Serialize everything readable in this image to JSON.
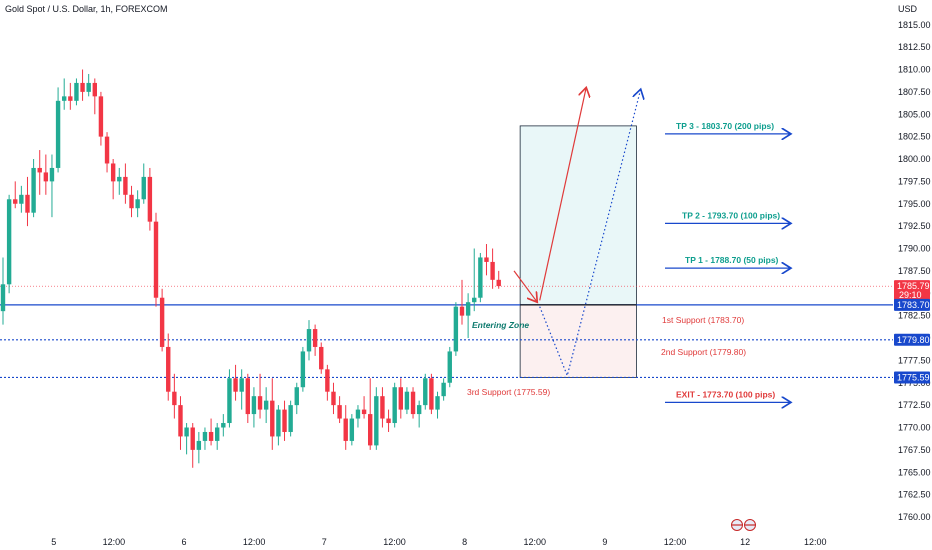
{
  "colors": {
    "bull": "#22ab94",
    "bear": "#f23645",
    "blue": "#1848cc",
    "teal": "#0d9e8e",
    "red_text": "#e03a3a",
    "box_top": "#e9f7f8",
    "box_bottom": "#fcf0f0",
    "axis_bg": "#ffffff"
  },
  "chart_data": {
    "type": "candlestick",
    "title": "Gold Spot / U.S. Dollar, 1h, FOREXCOM",
    "currency": "USD",
    "y_ticks": [
      "1815.00",
      "1812.50",
      "1810.00",
      "1807.50",
      "1805.00",
      "1802.50",
      "1800.00",
      "1797.50",
      "1795.00",
      "1792.50",
      "1790.00",
      "1787.50",
      "1785.00",
      "1782.50",
      "1780.00",
      "1777.50",
      "1775.00",
      "1772.50",
      "1770.00",
      "1767.50",
      "1765.00",
      "1762.50",
      "1760.00"
    ],
    "y_tick_values": [
      1815,
      1812.5,
      1810,
      1807.5,
      1805,
      1802.5,
      1800,
      1797.5,
      1795,
      1792.5,
      1790,
      1787.5,
      1785,
      1782.5,
      1780,
      1777.5,
      1775,
      1772.5,
      1770,
      1767.5,
      1765,
      1762.5,
      1760
    ],
    "x_ticks": [
      {
        "label": "5",
        "t": 7
      },
      {
        "label": "12:00",
        "t": 19
      },
      {
        "label": "6",
        "t": 31
      },
      {
        "label": "12:00",
        "t": 43
      },
      {
        "label": "7",
        "t": 55
      },
      {
        "label": "12:00",
        "t": 67
      },
      {
        "label": "8",
        "t": 79
      },
      {
        "label": "12:00",
        "t": 91
      },
      {
        "label": "9",
        "t": 103
      },
      {
        "label": "12:00",
        "t": 115
      },
      {
        "label": "12",
        "t": 127
      },
      {
        "label": "12:00",
        "t": 139
      }
    ],
    "ylim": [
      1757.6,
      1819.0
    ],
    "candles": [
      [
        1783.0,
        1789.0,
        1781.5,
        1786.0
      ],
      [
        1786.0,
        1796.0,
        1785.0,
        1795.5
      ],
      [
        1795.5,
        1797.5,
        1794.5,
        1795.0
      ],
      [
        1795.0,
        1797.0,
        1794.0,
        1796.0
      ],
      [
        1796.0,
        1798.0,
        1792.5,
        1794.0
      ],
      [
        1794.0,
        1800.0,
        1793.5,
        1799.0
      ],
      [
        1799.0,
        1801.0,
        1796.0,
        1798.5
      ],
      [
        1798.5,
        1800.5,
        1796.0,
        1797.5
      ],
      [
        1797.5,
        1800.5,
        1793.5,
        1799.0
      ],
      [
        1799.0,
        1808.0,
        1798.5,
        1806.5
      ],
      [
        1806.5,
        1809.0,
        1805.5,
        1807.0
      ],
      [
        1807.0,
        1808.5,
        1805.5,
        1806.5
      ],
      [
        1806.5,
        1809.0,
        1806.0,
        1808.5
      ],
      [
        1808.5,
        1810.0,
        1806.5,
        1807.5
      ],
      [
        1807.5,
        1809.5,
        1807.0,
        1808.5
      ],
      [
        1808.5,
        1809.0,
        1805.0,
        1807.0
      ],
      [
        1807.0,
        1807.5,
        1801.5,
        1802.5
      ],
      [
        1802.5,
        1803.0,
        1798.5,
        1799.5
      ],
      [
        1799.5,
        1800.0,
        1795.5,
        1797.5
      ],
      [
        1797.5,
        1799.0,
        1796.0,
        1798.0
      ],
      [
        1798.0,
        1799.5,
        1795.0,
        1796.0
      ],
      [
        1796.0,
        1797.0,
        1793.5,
        1794.5
      ],
      [
        1794.5,
        1796.5,
        1793.5,
        1795.5
      ],
      [
        1795.5,
        1799.5,
        1795.0,
        1798.0
      ],
      [
        1798.0,
        1799.0,
        1792.0,
        1793.0
      ],
      [
        1793.0,
        1794.0,
        1783.5,
        1784.5
      ],
      [
        1784.5,
        1785.5,
        1778.5,
        1779.0
      ],
      [
        1779.0,
        1780.5,
        1773.0,
        1774.0
      ],
      [
        1774.0,
        1776.0,
        1771.0,
        1772.5
      ],
      [
        1772.5,
        1773.5,
        1767.5,
        1769.0
      ],
      [
        1769.0,
        1770.5,
        1767.0,
        1770.0
      ],
      [
        1770.0,
        1770.5,
        1765.5,
        1767.5
      ],
      [
        1767.5,
        1769.5,
        1766.0,
        1768.5
      ],
      [
        1768.5,
        1770.0,
        1767.5,
        1769.5
      ],
      [
        1769.5,
        1771.0,
        1768.0,
        1768.5
      ],
      [
        1768.5,
        1770.5,
        1767.5,
        1770.0
      ],
      [
        1770.0,
        1771.5,
        1769.0,
        1770.5
      ],
      [
        1770.5,
        1776.5,
        1770.0,
        1775.5
      ],
      [
        1775.5,
        1777.0,
        1773.0,
        1774.0
      ],
      [
        1774.0,
        1776.5,
        1772.0,
        1775.5
      ],
      [
        1775.5,
        1776.0,
        1770.5,
        1771.5
      ],
      [
        1771.5,
        1774.5,
        1770.0,
        1773.5
      ],
      [
        1773.5,
        1776.0,
        1771.0,
        1772.0
      ],
      [
        1772.0,
        1774.5,
        1770.5,
        1773.0
      ],
      [
        1773.0,
        1775.5,
        1767.5,
        1769.0
      ],
      [
        1769.0,
        1772.5,
        1768.0,
        1772.0
      ],
      [
        1772.0,
        1773.0,
        1768.5,
        1769.5
      ],
      [
        1769.5,
        1773.0,
        1769.0,
        1772.5
      ],
      [
        1772.5,
        1775.0,
        1771.5,
        1774.5
      ],
      [
        1774.5,
        1779.0,
        1774.0,
        1778.5
      ],
      [
        1778.5,
        1782.0,
        1777.5,
        1781.0
      ],
      [
        1781.0,
        1781.5,
        1778.0,
        1779.0
      ],
      [
        1779.0,
        1779.5,
        1776.0,
        1776.5
      ],
      [
        1776.5,
        1777.0,
        1773.0,
        1774.0
      ],
      [
        1774.0,
        1775.0,
        1771.5,
        1772.5
      ],
      [
        1772.5,
        1773.5,
        1770.5,
        1771.0
      ],
      [
        1771.0,
        1772.5,
        1767.5,
        1768.5
      ],
      [
        1768.5,
        1771.5,
        1768.0,
        1771.0
      ],
      [
        1771.0,
        1772.5,
        1770.0,
        1772.0
      ],
      [
        1772.0,
        1773.5,
        1771.0,
        1771.5
      ],
      [
        1771.5,
        1775.5,
        1767.5,
        1768.0
      ],
      [
        1768.0,
        1774.5,
        1767.5,
        1773.5
      ],
      [
        1773.5,
        1774.5,
        1770.0,
        1771.0
      ],
      [
        1771.0,
        1772.0,
        1769.5,
        1770.5
      ],
      [
        1770.5,
        1775.0,
        1770.0,
        1774.5
      ],
      [
        1774.5,
        1775.5,
        1771.0,
        1772.0
      ],
      [
        1772.0,
        1774.5,
        1771.5,
        1774.0
      ],
      [
        1774.0,
        1774.5,
        1771.0,
        1771.5
      ],
      [
        1771.5,
        1773.0,
        1770.0,
        1772.5
      ],
      [
        1772.5,
        1776.0,
        1772.0,
        1775.5
      ],
      [
        1775.5,
        1776.0,
        1771.5,
        1772.0
      ],
      [
        1772.0,
        1774.0,
        1771.0,
        1773.5
      ],
      [
        1773.5,
        1775.5,
        1773.0,
        1775.0
      ],
      [
        1775.0,
        1779.0,
        1774.5,
        1778.5
      ],
      [
        1778.5,
        1784.0,
        1778.0,
        1783.5
      ],
      [
        1783.5,
        1786.5,
        1781.5,
        1782.5
      ],
      [
        1782.5,
        1785.0,
        1780.0,
        1784.0
      ],
      [
        1784.0,
        1790.0,
        1783.0,
        1784.5
      ],
      [
        1784.5,
        1789.5,
        1784.0,
        1789.0
      ],
      [
        1789.0,
        1790.5,
        1787.0,
        1788.5
      ],
      [
        1788.5,
        1790.0,
        1785.5,
        1786.5
      ],
      [
        1786.5,
        1787.5,
        1785.5,
        1785.8
      ]
    ],
    "candle_t_start": 0,
    "levels": [
      {
        "name": "current_price",
        "value": 1785.79,
        "style": "dotted-red"
      },
      {
        "name": "entry_line",
        "value": 1783.7,
        "style": "solid-blue"
      },
      {
        "name": "support_2",
        "value": 1779.8,
        "style": "dotted-blue"
      },
      {
        "name": "support_3",
        "value": 1775.59,
        "style": "dotted-blue"
      }
    ],
    "annotations": {
      "entering_zone": "Entering Zone",
      "support_1": "1st Support (1783.70)",
      "support_2": "2nd Support (1779.80)",
      "support_3": "3rd Support (1775.59)",
      "tp3": "TP 3 - 1803.70 (200 pips)",
      "tp2": "TP 2 - 1793.70 (100 pips)",
      "tp1": "TP 1 - 1788.70 (50 pips)",
      "exit": "EXIT - 1773.70 (100 pips)"
    },
    "price_tags": {
      "current": "1785.79",
      "countdown": "29:10",
      "entry": "1783.70",
      "s2": "1779.80",
      "s3": "1775.59"
    },
    "box": {
      "t_start": 84.5,
      "t_end": 103.5,
      "top": 1803.7,
      "mid": 1783.7,
      "bottom": 1775.59
    },
    "tp_arrows": [
      {
        "label_key": "tp3",
        "value": 1803.7
      },
      {
        "label_key": "tp2",
        "value": 1793.7
      },
      {
        "label_key": "tp1",
        "value": 1788.7
      },
      {
        "label_key": "exit",
        "value": 1773.7
      }
    ]
  }
}
